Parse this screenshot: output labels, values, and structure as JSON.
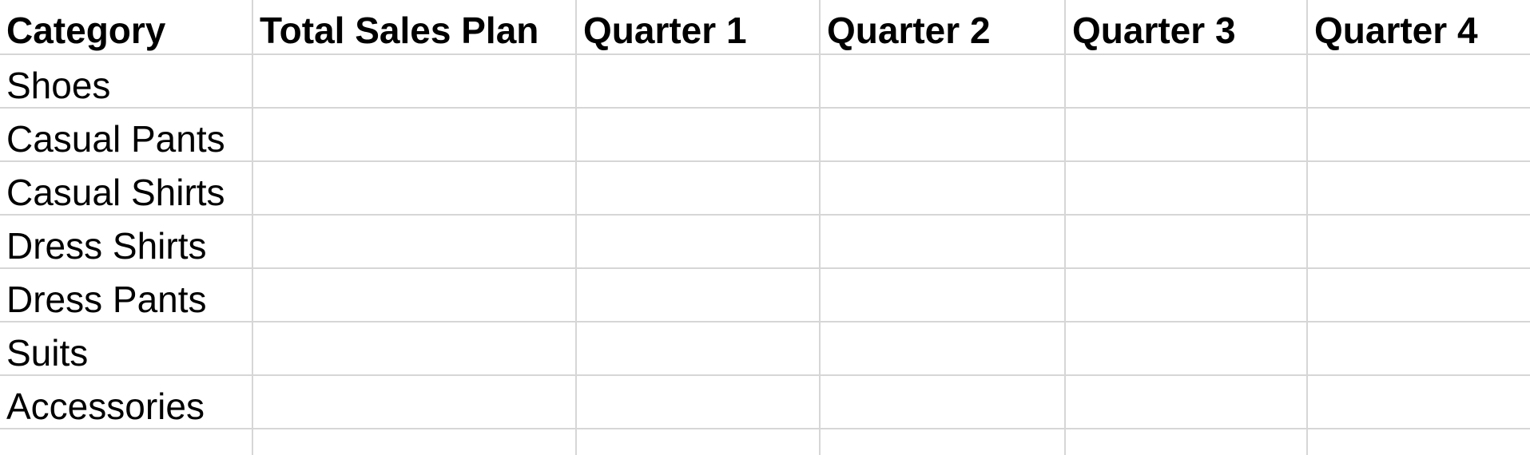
{
  "table": {
    "columns": [
      "Category",
      "Total Sales Plan",
      "Quarter 1",
      "Quarter 2",
      "Quarter 3",
      "Quarter 4"
    ],
    "rows": [
      [
        "Shoes",
        "",
        "",
        "",
        "",
        ""
      ],
      [
        "Casual Pants",
        "",
        "",
        "",
        "",
        ""
      ],
      [
        "Casual Shirts",
        "",
        "",
        "",
        "",
        ""
      ],
      [
        "Dress Shirts",
        "",
        "",
        "",
        "",
        ""
      ],
      [
        "Dress Pants",
        "",
        "",
        "",
        "",
        ""
      ],
      [
        "Suits",
        "",
        "",
        "",
        "",
        ""
      ],
      [
        "Accessories",
        "",
        "",
        "",
        "",
        ""
      ]
    ]
  },
  "colors": {
    "gridline": "#d6d6d6",
    "text": "#000000",
    "background": "#ffffff"
  }
}
